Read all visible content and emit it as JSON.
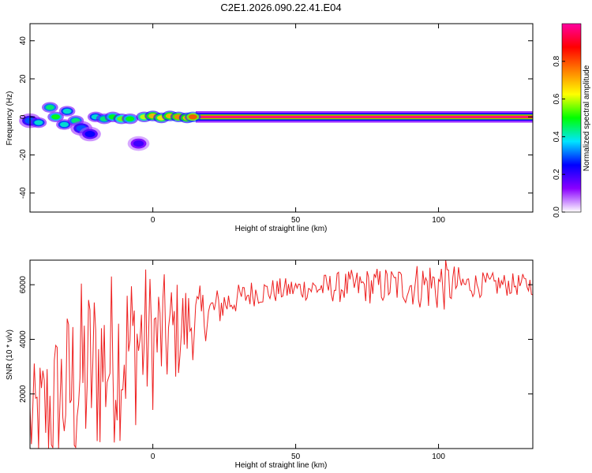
{
  "figure": {
    "title": "C2E1.2026.090.22.41.E04"
  },
  "chart_data": [
    {
      "type": "heatmap",
      "xlabel": "Height of straight line (km)",
      "ylabel": "Frequency (Hz)",
      "xlim": [
        -43,
        133
      ],
      "ylim": [
        -50,
        49
      ],
      "x_ticks": [
        0,
        50,
        100
      ],
      "y_ticks": [
        -40,
        -20,
        0,
        20,
        40
      ],
      "grid": false,
      "colorbar": {
        "label": "Normalized spectral amplitude",
        "range": [
          0,
          1
        ],
        "ticks": [
          "0.0",
          "0.2",
          "0.4",
          "0.6",
          "0.8"
        ],
        "colors": [
          "#ffffff",
          "#8a00ff",
          "#0000ff",
          "#00e5ff",
          "#00ff00",
          "#ffff00",
          "#ff8000",
          "#ff0000",
          "#ff00a0"
        ]
      },
      "main_line": {
        "frequency": 0,
        "x_start": 15,
        "x_end": 133
      },
      "features": [
        {
          "x": -43,
          "y": -2,
          "amp": 0.3
        },
        {
          "x": -40,
          "y": -3,
          "amp": 0.4
        },
        {
          "x": -36,
          "y": 5,
          "amp": 0.45
        },
        {
          "x": -34,
          "y": 0,
          "amp": 0.5
        },
        {
          "x": -31,
          "y": -4,
          "amp": 0.4
        },
        {
          "x": -30,
          "y": 3,
          "amp": 0.4
        },
        {
          "x": -27,
          "y": -2,
          "amp": 0.45
        },
        {
          "x": -25,
          "y": -6,
          "amp": 0.3
        },
        {
          "x": -22,
          "y": -9,
          "amp": 0.25
        },
        {
          "x": -20,
          "y": 0,
          "amp": 0.4
        },
        {
          "x": -17,
          "y": -1,
          "amp": 0.45
        },
        {
          "x": -14,
          "y": 0,
          "amp": 0.5
        },
        {
          "x": -11,
          "y": -1,
          "amp": 0.55
        },
        {
          "x": -8,
          "y": -1,
          "amp": 0.5
        },
        {
          "x": -5,
          "y": -14,
          "amp": 0.2
        },
        {
          "x": -3,
          "y": 0,
          "amp": 0.6
        },
        {
          "x": 0,
          "y": 0.5,
          "amp": 0.7
        },
        {
          "x": 3,
          "y": -0.5,
          "amp": 0.65
        },
        {
          "x": 6,
          "y": 0.5,
          "amp": 0.7
        },
        {
          "x": 9,
          "y": 0,
          "amp": 0.75
        },
        {
          "x": 12,
          "y": -0.5,
          "amp": 0.7
        },
        {
          "x": 14,
          "y": 0,
          "amp": 0.8
        }
      ]
    },
    {
      "type": "line",
      "xlabel": "Height of straight line (km)",
      "ylabel": "SNR (10 * v/v)",
      "xlim": [
        -43,
        133
      ],
      "ylim": [
        0,
        6900
      ],
      "x_ticks": [
        0,
        50,
        100
      ],
      "y_ticks": [
        2000,
        4000,
        6000
      ],
      "grid": false,
      "color": "#ee2020",
      "x_step": 0.5,
      "trend": [
        [
          -43,
          900
        ],
        [
          -35,
          1600
        ],
        [
          -25,
          2600
        ],
        [
          -15,
          3300
        ],
        [
          -5,
          3900
        ],
        [
          5,
          4100
        ],
        [
          15,
          4700
        ],
        [
          25,
          5300
        ],
        [
          35,
          5700
        ],
        [
          50,
          5850
        ],
        [
          75,
          5950
        ],
        [
          100,
          6000
        ],
        [
          133,
          6000
        ]
      ],
      "noise": [
        [
          -43,
          1400
        ],
        [
          -25,
          2600
        ],
        [
          -5,
          2200
        ],
        [
          10,
          1300
        ],
        [
          20,
          600
        ],
        [
          30,
          380
        ],
        [
          50,
          300
        ],
        [
          70,
          450
        ],
        [
          90,
          550
        ],
        [
          100,
          800
        ],
        [
          110,
          350
        ],
        [
          133,
          280
        ]
      ]
    }
  ]
}
